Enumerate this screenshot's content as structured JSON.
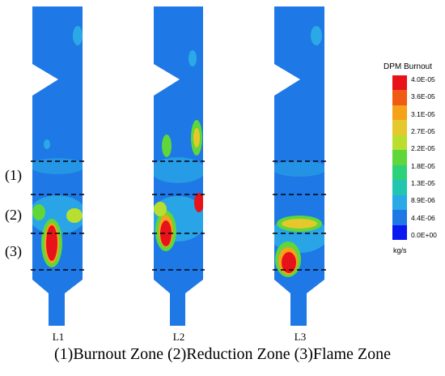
{
  "furnace_labels": [
    "L1",
    "L2",
    "L3"
  ],
  "zone_markers": [
    "(1)",
    "(2)",
    "(3)"
  ],
  "caption": "(1)Burnout Zone (2)Reduction Zone (3)Flame Zone",
  "legend": {
    "title": "DPM Burnout",
    "unit": "kg/s",
    "ticks": [
      "4.0E-05",
      "3.6E-05",
      "3.1E-05",
      "2.7E-05",
      "2.2E-05",
      "1.8E-05",
      "1.3E-05",
      "8.9E-06",
      "4.4E-06",
      "0.0E+00"
    ],
    "colors": [
      "#e8131a",
      "#f05a14",
      "#f5a21a",
      "#e6c82c",
      "#b8df30",
      "#5fd63a",
      "#2bd27a",
      "#22c6b0",
      "#2aa9e6",
      "#1e78e6",
      "#0a17f0"
    ]
  },
  "colors": {
    "background_field": "#1e78e6",
    "dashed_line": "#000000"
  }
}
